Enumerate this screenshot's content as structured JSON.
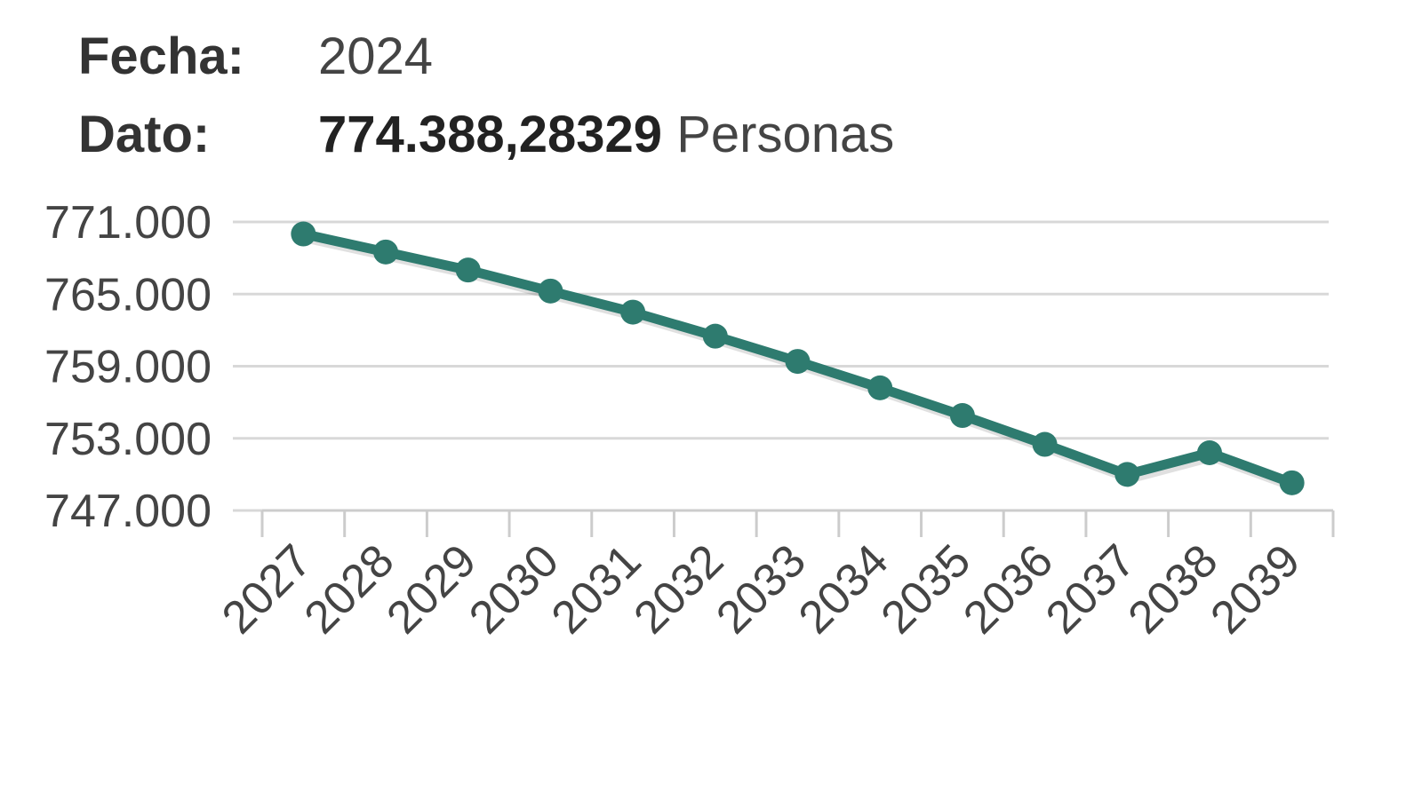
{
  "info": {
    "fecha_label": "Fecha:",
    "fecha_value": "2024",
    "dato_label": "Dato:",
    "dato_value": "774.388,28329",
    "dato_unit": "Personas"
  },
  "chart_data": {
    "type": "line",
    "title": "",
    "xlabel": "",
    "ylabel": "",
    "x": [
      "2027",
      "2028",
      "2029",
      "2030",
      "2031",
      "2032",
      "2033",
      "2034",
      "2035",
      "2036",
      "2037",
      "2038",
      "2039"
    ],
    "series": [
      {
        "name": "Personas",
        "color": "#2e7b6f",
        "values": [
          770000,
          768500,
          767000,
          765250,
          763500,
          761500,
          759400,
          757200,
          754900,
          752500,
          750000,
          751800,
          749300
        ]
      }
    ],
    "y_ticks": [
      771000,
      765000,
      759000,
      753000,
      747000
    ],
    "y_tick_labels": [
      "771.000",
      "765.000",
      "759.000",
      "753.000",
      "747.000"
    ],
    "ylim": [
      747000,
      771000
    ],
    "grid": true,
    "legend": "none"
  }
}
